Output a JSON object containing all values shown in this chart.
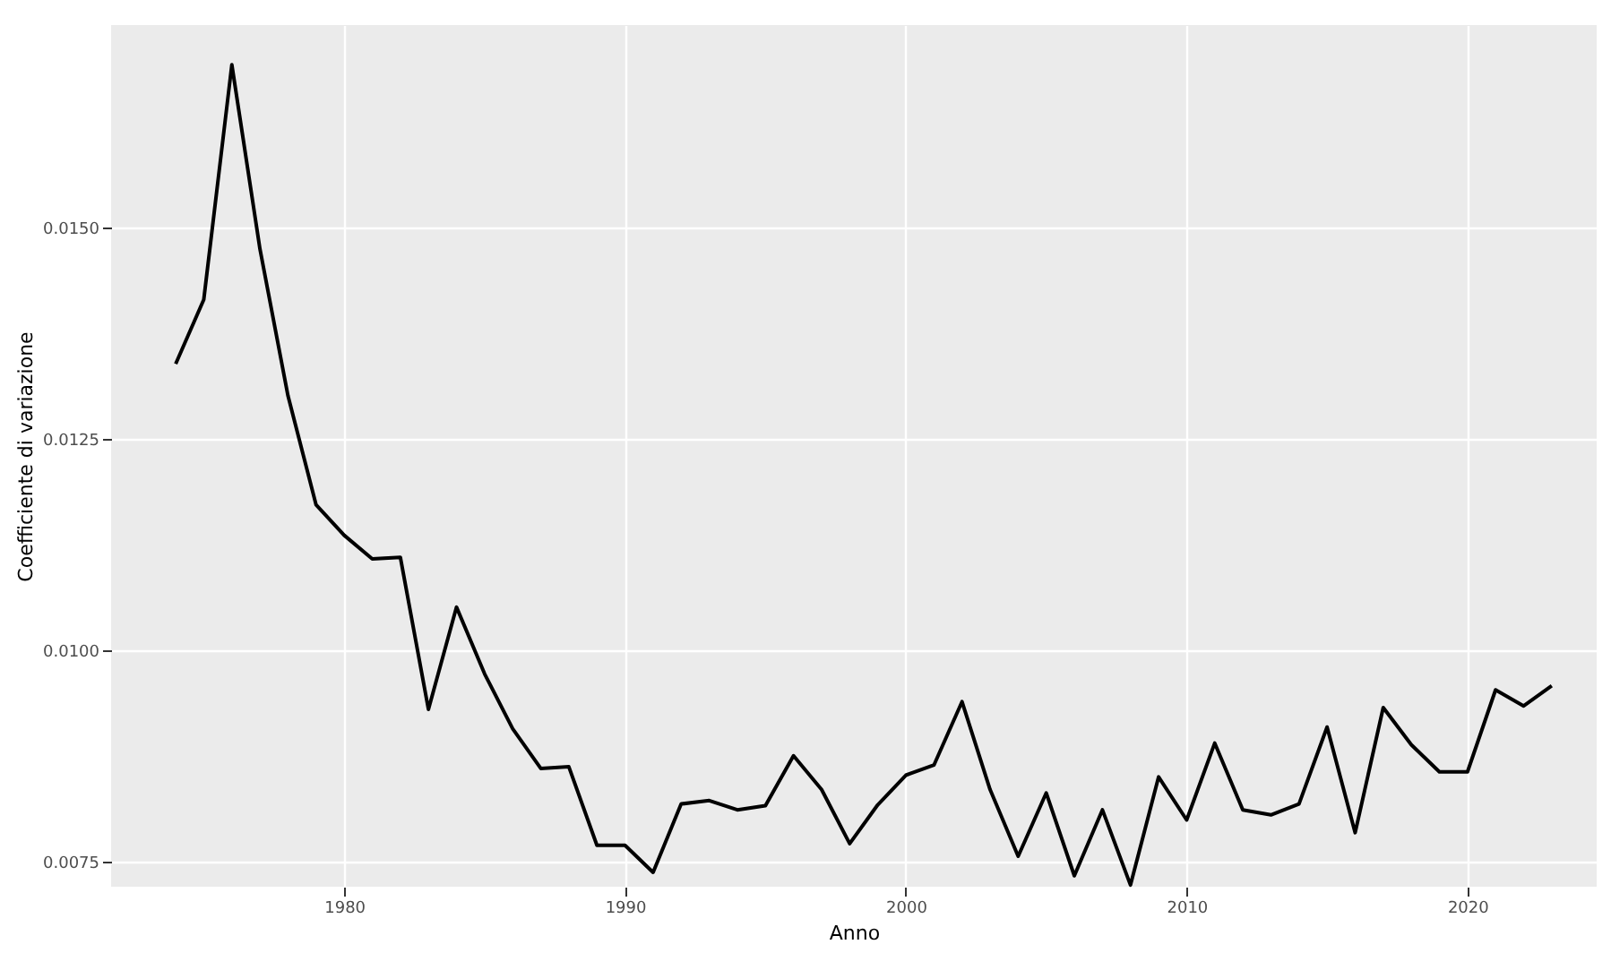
{
  "chart_data": {
    "type": "line",
    "xlabel": "Anno",
    "ylabel": "Coefficiente di variazione",
    "x": [
      1974,
      1975,
      1976,
      1977,
      1978,
      1979,
      1980,
      1981,
      1982,
      1983,
      1984,
      1985,
      1986,
      1987,
      1988,
      1989,
      1990,
      1991,
      1992,
      1993,
      1994,
      1995,
      1996,
      1997,
      1998,
      1999,
      2000,
      2001,
      2002,
      2003,
      2004,
      2005,
      2006,
      2007,
      2008,
      2009,
      2010,
      2011,
      2012,
      2013,
      2014,
      2015,
      2016,
      2017,
      2018,
      2019,
      2020,
      2021,
      2022,
      2023
    ],
    "series": [
      {
        "color": "#000000",
        "values": [
          0.01339,
          0.01415,
          0.01693,
          0.01475,
          0.01301,
          0.01172,
          0.01136,
          0.01108,
          0.0111,
          0.0093,
          0.01051,
          0.00972,
          0.00907,
          0.0086,
          0.00862,
          0.00769,
          0.00769,
          0.00737,
          0.00818,
          0.00822,
          0.00811,
          0.00816,
          0.00875,
          0.00835,
          0.00771,
          0.00817,
          0.00852,
          0.00864,
          0.00939,
          0.00835,
          0.00756,
          0.00831,
          0.00733,
          0.00811,
          0.00722,
          0.0085,
          0.00799,
          0.0089,
          0.00811,
          0.00805,
          0.00818,
          0.00909,
          0.00784,
          0.00932,
          0.00888,
          0.00856,
          0.00856,
          0.00953,
          0.00934,
          0.00958
        ]
      }
    ],
    "xlim": [
      1971.7,
      2024.6
    ],
    "ylim": [
      0.0072,
      0.0174
    ],
    "xticks": [
      1980,
      1990,
      2000,
      2010,
      2020
    ],
    "yticks": [
      0.0075,
      {
        "value": 0.01,
        "label": "0.0100"
      },
      0.0125,
      {
        "value": 0.015,
        "label": "0.0150"
      }
    ],
    "grid": true,
    "marker": "none",
    "line_style": "solid"
  }
}
